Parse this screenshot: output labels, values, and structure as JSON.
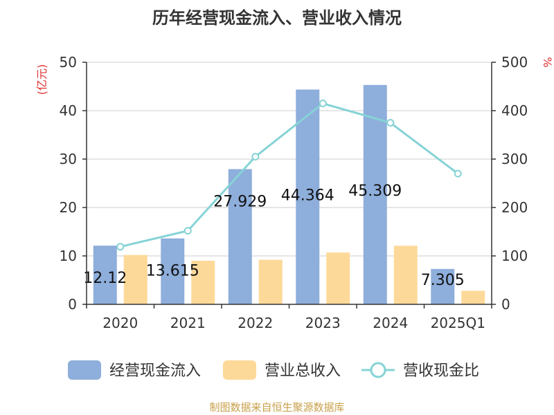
{
  "chart_data": {
    "type": "bar",
    "title": "历年经营现金流入、营业收入情况",
    "categories": [
      "2020",
      "2021",
      "2022",
      "2023",
      "2024",
      "2025Q1"
    ],
    "y_left": {
      "label": "(亿元)",
      "ticks": [
        0,
        10,
        20,
        30,
        40,
        50
      ],
      "range": [
        0,
        50
      ]
    },
    "y_right": {
      "label": "%",
      "ticks": [
        0,
        100,
        200,
        300,
        400,
        500
      ],
      "range": [
        0,
        500
      ]
    },
    "series": [
      {
        "name": "经营现金流入",
        "type": "bar",
        "axis": "left",
        "color": "#8eaedb",
        "values": [
          12.12,
          13.615,
          27.929,
          44.364,
          45.309,
          7.305
        ],
        "labels": [
          "12.12",
          "13.615",
          "27.929",
          "44.364",
          "45.309",
          "7.305"
        ]
      },
      {
        "name": "营业总收入",
        "type": "bar",
        "axis": "left",
        "color": "#fdd999",
        "values": [
          10.2,
          9.0,
          9.2,
          10.7,
          12.1,
          2.8
        ]
      },
      {
        "name": "营收现金比",
        "type": "line",
        "axis": "right",
        "color": "#86d3d6",
        "values": [
          119,
          152,
          305,
          415,
          375,
          270
        ]
      }
    ],
    "grid": true,
    "legend_position": "bottom"
  },
  "source": "制图数据来自恒生聚源数据库"
}
